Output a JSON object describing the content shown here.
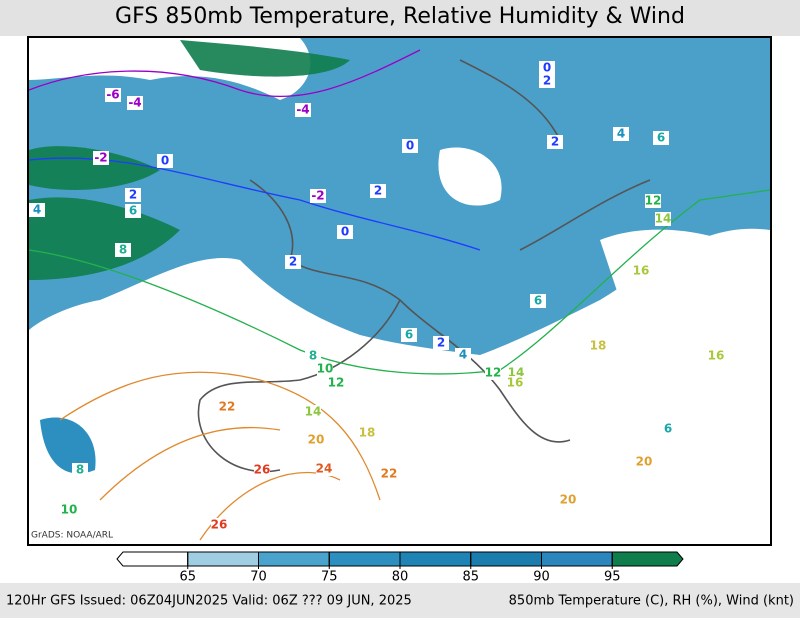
{
  "header": {
    "title": "GFS 850mb Temperature, Relative Humidity & Wind"
  },
  "map": {
    "credit": "GrADS: NOAA/ARL",
    "contour_labels": [
      {
        "value": -6,
        "color": "#9a00c8"
      },
      {
        "value": -4,
        "color": "#9a00c8"
      },
      {
        "value": -4,
        "color": "#9a00c8"
      },
      {
        "value": -2,
        "color": "#9a00c8"
      },
      {
        "value": -2,
        "color": "#9a00c8"
      },
      {
        "value": 0,
        "color": "#1e3cff"
      },
      {
        "value": 0,
        "color": "#1e3cff"
      },
      {
        "value": 0,
        "color": "#1e3cff"
      },
      {
        "value": 0,
        "color": "#1e3cff"
      },
      {
        "value": 2,
        "color": "#1e3cff"
      },
      {
        "value": 2,
        "color": "#1e3cff"
      },
      {
        "value": 2,
        "color": "#1e3cff"
      },
      {
        "value": 2,
        "color": "#1e3cff"
      },
      {
        "value": 2,
        "color": "#1e3cff"
      },
      {
        "value": 2,
        "color": "#1e3cff"
      },
      {
        "value": 4,
        "color": "#1a90c0"
      },
      {
        "value": 4,
        "color": "#1a90c0"
      },
      {
        "value": 4,
        "color": "#1a90c0"
      },
      {
        "value": 6,
        "color": "#18a8a8"
      },
      {
        "value": 6,
        "color": "#18a8a8"
      },
      {
        "value": 6,
        "color": "#18a8a8"
      },
      {
        "value": 6,
        "color": "#18a8a8"
      },
      {
        "value": 8,
        "color": "#20b090"
      },
      {
        "value": 8,
        "color": "#20b090"
      },
      {
        "value": 8,
        "color": "#20b090"
      },
      {
        "value": 10,
        "color": "#22b14c"
      },
      {
        "value": 10,
        "color": "#22b14c"
      },
      {
        "value": 12,
        "color": "#22b14c"
      },
      {
        "value": 12,
        "color": "#22b14c"
      },
      {
        "value": 12,
        "color": "#22b14c"
      },
      {
        "value": 14,
        "color": "#8cc63f"
      },
      {
        "value": 14,
        "color": "#8cc63f"
      },
      {
        "value": 14,
        "color": "#8cc63f"
      },
      {
        "value": 16,
        "color": "#a8c83c"
      },
      {
        "value": 16,
        "color": "#a8c83c"
      },
      {
        "value": 16,
        "color": "#a8c83c"
      },
      {
        "value": 18,
        "color": "#c8c040"
      },
      {
        "value": 18,
        "color": "#c8c040"
      },
      {
        "value": 20,
        "color": "#e0a030"
      },
      {
        "value": 20,
        "color": "#e0a030"
      },
      {
        "value": 20,
        "color": "#e0a030"
      },
      {
        "value": 22,
        "color": "#e07a20"
      },
      {
        "value": 22,
        "color": "#e07a20"
      },
      {
        "value": 24,
        "color": "#e05a20"
      },
      {
        "value": 26,
        "color": "#e03a20"
      },
      {
        "value": 26,
        "color": "#e03a20"
      },
      {
        "value": 6,
        "color": "#18a8a8"
      }
    ]
  },
  "colorbar": {
    "colors": [
      "#ffffff",
      "#9fcde2",
      "#4aa3cc",
      "#2c8fc0",
      "#2083b6",
      "#1b7cae",
      "#2a86bd",
      "#0f7d4c"
    ],
    "ticks": [
      65,
      70,
      75,
      80,
      85,
      90,
      95
    ]
  },
  "footer": {
    "left": "120Hr GFS Issued: 06Z04JUN2025 Valid: 06Z ??? 09 JUN, 2025",
    "right": "850mb Temperature (C), RH (%), Wind (knt)"
  }
}
